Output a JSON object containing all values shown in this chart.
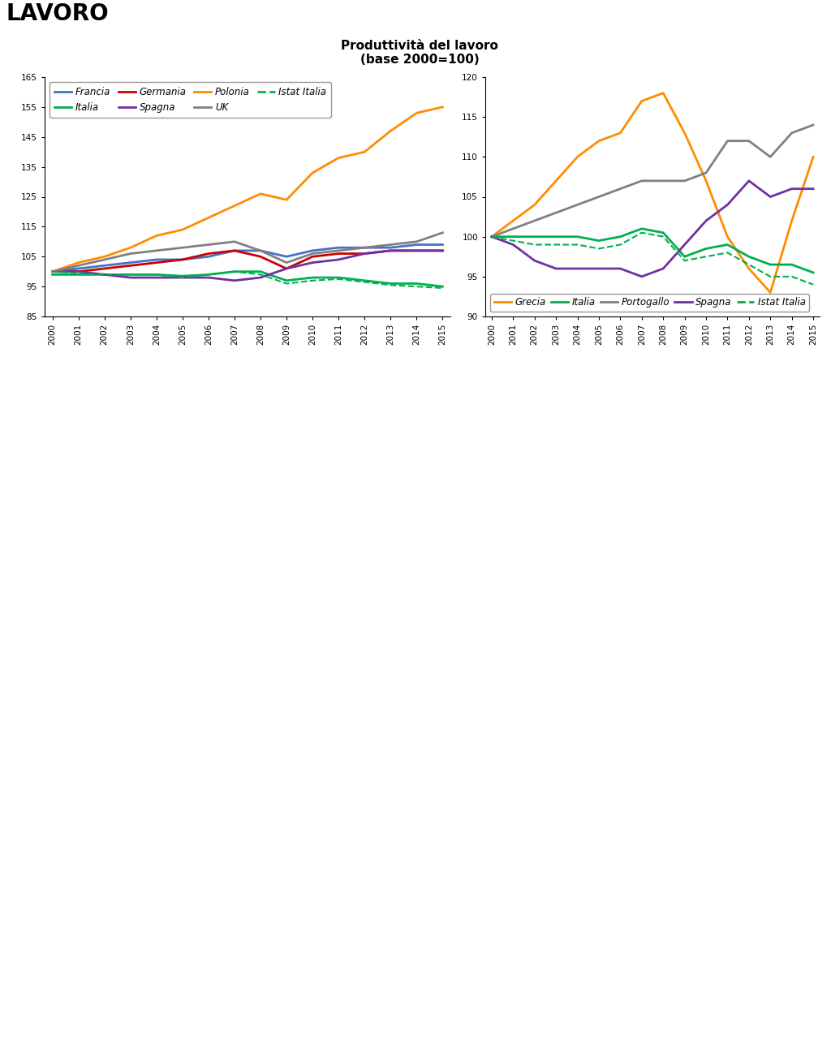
{
  "title_line1": "Produttività del lavoro",
  "title_line2": "(base 2000=100)",
  "lavoro_text": "LAVORO",
  "years": [
    2000,
    2001,
    2002,
    2003,
    2004,
    2005,
    2006,
    2007,
    2008,
    2009,
    2010,
    2011,
    2012,
    2013,
    2014,
    2015
  ],
  "left_chart": {
    "ylim": [
      85,
      165
    ],
    "yticks": [
      85,
      95,
      105,
      115,
      125,
      135,
      145,
      155,
      165
    ],
    "series": [
      {
        "name": "Francia",
        "color": "#4472C4",
        "style": "solid",
        "data": [
          100,
          101,
          102,
          103,
          104,
          104,
          105,
          107,
          107,
          105,
          107,
          108,
          108,
          108,
          109,
          109
        ]
      },
      {
        "name": "Italia",
        "color": "#00B050",
        "style": "solid",
        "data": [
          99,
          99,
          99,
          99,
          99,
          98.5,
          99,
          100,
          100,
          97,
          98,
          98,
          97,
          96,
          96,
          95
        ]
      },
      {
        "name": "Germania",
        "color": "#CC0000",
        "style": "solid",
        "data": [
          100,
          100,
          101,
          102,
          103,
          104,
          106,
          107,
          105,
          101,
          105,
          106,
          106,
          107,
          107,
          107
        ]
      },
      {
        "name": "Spagna",
        "color": "#7030A0",
        "style": "solid",
        "data": [
          100,
          100,
          99,
          98,
          98,
          98,
          98,
          97,
          98,
          101,
          103,
          104,
          106,
          107,
          107,
          107
        ]
      },
      {
        "name": "Polonia",
        "color": "#FF8C00",
        "style": "solid",
        "data": [
          100,
          103,
          105,
          108,
          112,
          114,
          118,
          122,
          126,
          124,
          133,
          138,
          140,
          147,
          153,
          155
        ]
      },
      {
        "name": "UK",
        "color": "#808080",
        "style": "solid",
        "data": [
          100,
          102,
          104,
          106,
          107,
          108,
          109,
          110,
          107,
          103,
          106,
          107,
          108,
          109,
          110,
          113
        ]
      },
      {
        "name": "Istat Italia",
        "color": "#00B050",
        "style": "dashed",
        "data": [
          100,
          99.5,
          99,
          99,
          99,
          98,
          99,
          100,
          99,
          96,
          97,
          97.5,
          96.5,
          95.5,
          95,
          94.5
        ]
      }
    ]
  },
  "right_chart": {
    "ylim": [
      90,
      120
    ],
    "yticks": [
      90,
      95,
      100,
      105,
      110,
      115,
      120
    ],
    "series": [
      {
        "name": "Grecia",
        "color": "#FF8C00",
        "style": "solid",
        "data": [
          100,
          102,
          104,
          107,
          110,
          112,
          113,
          117,
          118,
          113,
          107,
          100,
          96,
          93,
          102,
          110
        ]
      },
      {
        "name": "Italia",
        "color": "#00B050",
        "style": "solid",
        "data": [
          100,
          100,
          100,
          100,
          100,
          99.5,
          100,
          101,
          100.5,
          97.5,
          98.5,
          99,
          97.5,
          96.5,
          96.5,
          95.5
        ]
      },
      {
        "name": "Portogallo",
        "color": "#808080",
        "style": "solid",
        "data": [
          100,
          101,
          102,
          103,
          104,
          105,
          106,
          107,
          107,
          107,
          108,
          112,
          112,
          110,
          113,
          114
        ]
      },
      {
        "name": "Spagna",
        "color": "#7030A0",
        "style": "solid",
        "data": [
          100,
          99,
          97,
          96,
          96,
          96,
          96,
          95,
          96,
          99,
          102,
          104,
          107,
          105,
          106,
          106
        ]
      },
      {
        "name": "Istat Italia",
        "color": "#00B050",
        "style": "dashed",
        "data": [
          100,
          99.5,
          99,
          99,
          99,
          98.5,
          99,
          100.5,
          100,
          97,
          97.5,
          98,
          96.5,
          95,
          95,
          94
        ]
      }
    ]
  },
  "panel_bg_color": "#C8C8C8",
  "plot_bg_color": "#FFFFFF",
  "page_bg_color": "#FFFFFF",
  "legend_fontsize": 8.5,
  "tick_fontsize": 7.5,
  "title_fontsize": 11,
  "lavoro_fontsize": 20
}
